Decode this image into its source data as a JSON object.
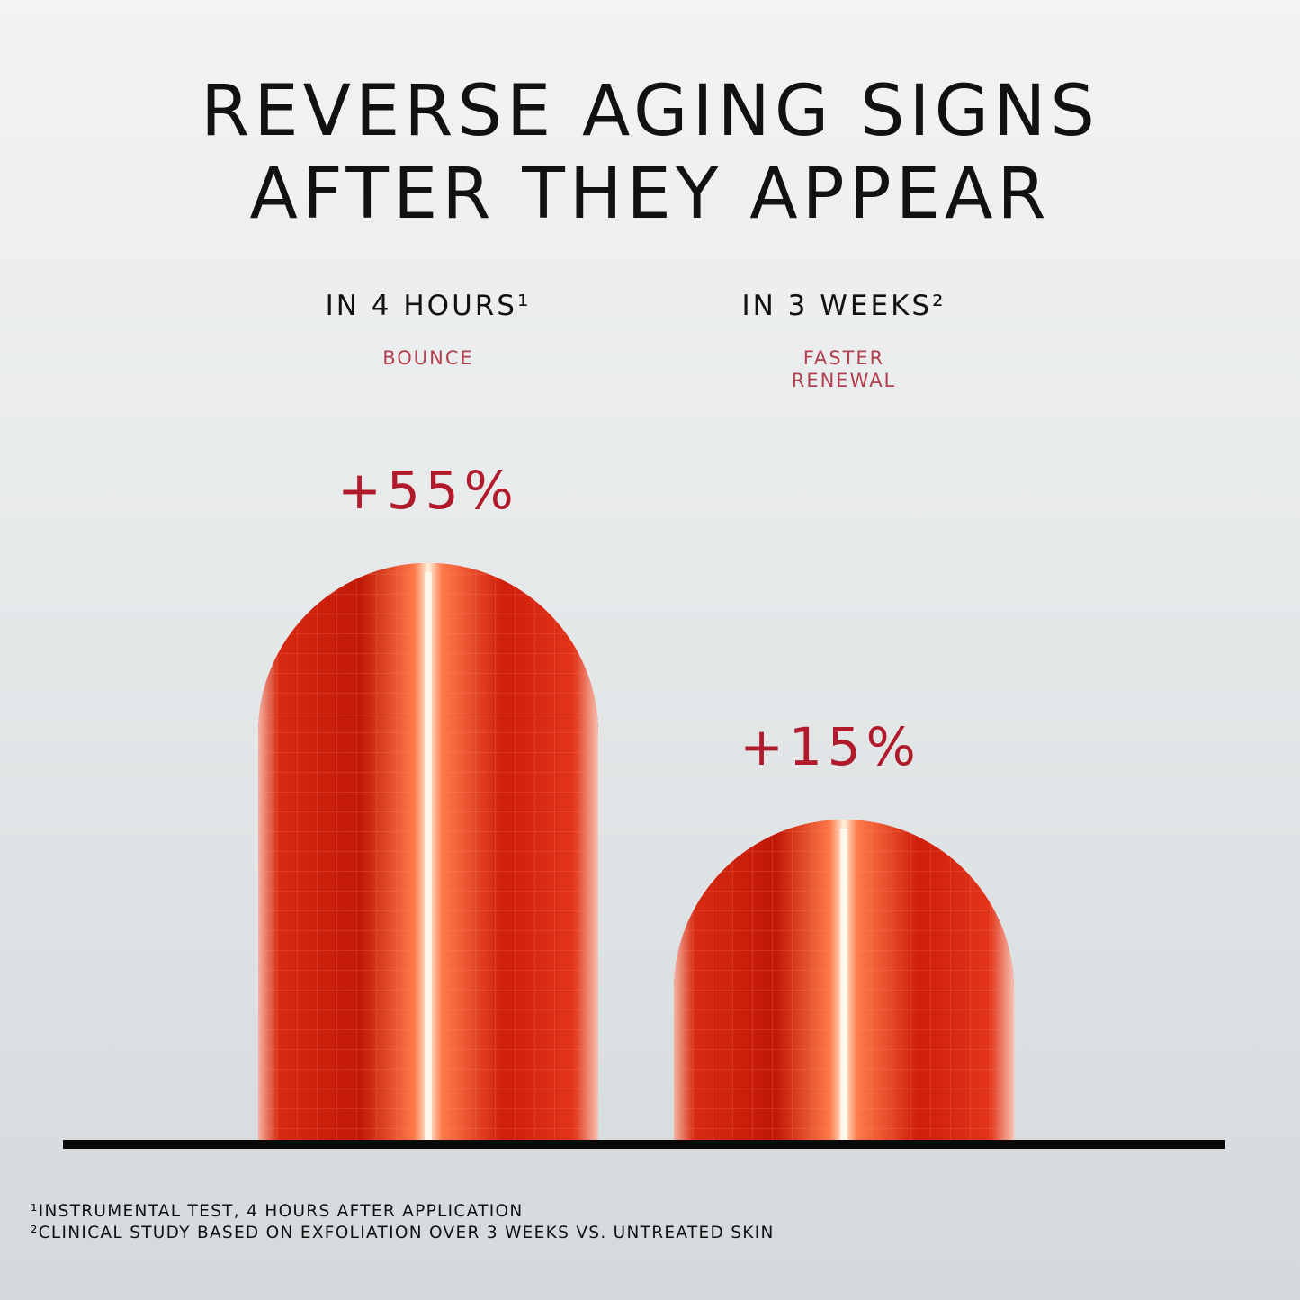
{
  "chart_data": {
    "type": "bar",
    "title": "REVERSE AGING SIGNS AFTER THEY APPEAR",
    "categories": [
      "IN 4 HOURS¹",
      "IN 3 WEEKS²"
    ],
    "subtitles": [
      "BOUNCE",
      "FASTER RENEWAL"
    ],
    "values": [
      55,
      15
    ],
    "value_labels": [
      "+55%",
      "+15%"
    ],
    "color": "#d9261a",
    "footnotes": [
      "¹INSTRUMENTAL TEST, 4 HOURS AFTER APPLICATION",
      "²CLINICAL STUDY BASED ON EXFOLIATION OVER 3 WEEKS VS. UNTREATED SKIN"
    ]
  }
}
